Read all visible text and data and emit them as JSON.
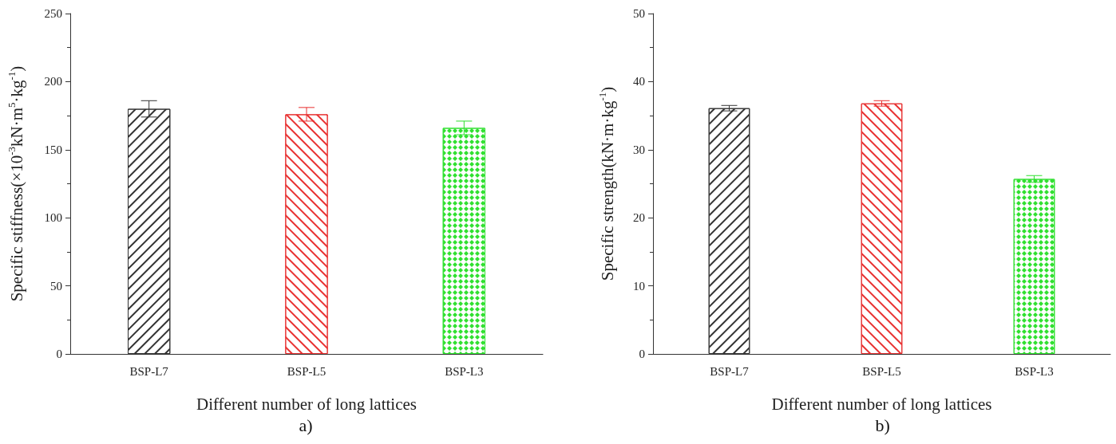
{
  "chart_data": [
    {
      "type": "bar",
      "categories": [
        "BSP-L7",
        "BSP-L5",
        "BSP-L3"
      ],
      "values": [
        180,
        176,
        166
      ],
      "errors": [
        6,
        5,
        5
      ],
      "colors": [
        "#333333",
        "#e83030",
        "#30e030"
      ],
      "xlabel": "Different number of long lattices",
      "ylabel": "Specific stiffness(×10$^{-3}$kN·m$^{5}$·kg$^{-1}$)",
      "ylim": [
        0,
        250
      ],
      "yticks": [
        0,
        50,
        100,
        150,
        200,
        250
      ],
      "annotations": [
        "a)"
      ]
    },
    {
      "type": "bar",
      "categories": [
        "BSP-L7",
        "BSP-L5",
        "BSP-L3"
      ],
      "values": [
        36.1,
        36.8,
        25.7
      ],
      "errors": [
        0.4,
        0.4,
        0.5
      ],
      "colors": [
        "#333333",
        "#e83030",
        "#30e030"
      ],
      "xlabel": "Different number of long lattices",
      "ylabel": "Specific strength(kN·m·kg$^{-1}$)",
      "ylim": [
        0,
        50
      ],
      "yticks": [
        0,
        10,
        20,
        30,
        40,
        50
      ],
      "annotations": [
        "b)"
      ]
    }
  ]
}
